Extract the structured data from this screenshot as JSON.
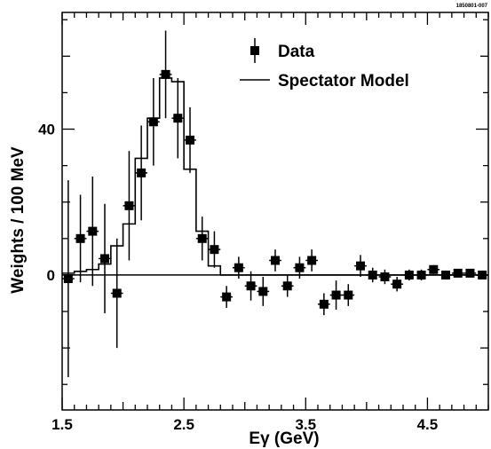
{
  "corner_label": "1850801-007",
  "chart_data": {
    "type": "scatter",
    "xlabel": "Eγ (GeV)",
    "ylabel": "Weights / 100 MeV",
    "xlim": [
      1.5,
      5.0
    ],
    "ylim": [
      -37,
      72
    ],
    "x_ticks": [
      1.5,
      2.5,
      3.5,
      4.5
    ],
    "x_tick_labels": [
      "1.5",
      "2.5",
      "3.5",
      "4.5"
    ],
    "y_ticks": [
      0,
      40
    ],
    "y_tick_labels": [
      "0",
      "40"
    ],
    "legend": {
      "position": "top-right",
      "entries": [
        "Data",
        "Spectator Model"
      ]
    },
    "series": [
      {
        "name": "Data",
        "marker": "square",
        "bin_width": 0.1,
        "x": [
          1.55,
          1.65,
          1.75,
          1.85,
          1.95,
          2.05,
          2.15,
          2.25,
          2.35,
          2.45,
          2.55,
          2.65,
          2.75,
          2.85,
          2.95,
          3.05,
          3.15,
          3.25,
          3.35,
          3.45,
          3.55,
          3.65,
          3.75,
          3.85,
          3.95,
          4.05,
          4.15,
          4.25,
          4.35,
          4.45,
          4.55,
          4.65,
          4.75,
          4.85,
          4.95
        ],
        "y": [
          -1,
          10,
          12,
          4.5,
          -5,
          19,
          28,
          42,
          55,
          43,
          37,
          10,
          7,
          -6,
          2,
          -3,
          -4.5,
          4,
          -3,
          2,
          4,
          -8,
          -5.5,
          -5.5,
          2.5,
          0,
          -0.5,
          -2.5,
          0,
          0,
          1.5,
          0,
          0.5,
          0.5,
          0
        ],
        "yerr": [
          27,
          12,
          15,
          15,
          15,
          15,
          13,
          12,
          12,
          11,
          9,
          6,
          5,
          3,
          3,
          4,
          4,
          3,
          3,
          3,
          3,
          3,
          4,
          3,
          3,
          2,
          2,
          2,
          1.5,
          1.5,
          1.2,
          1,
          1,
          1,
          1
        ]
      },
      {
        "name": "Spectator Model",
        "style": "step",
        "x": [
          1.55,
          1.65,
          1.75,
          1.85,
          1.95,
          2.05,
          2.15,
          2.25,
          2.35,
          2.45,
          2.55,
          2.65,
          2.75,
          2.85,
          2.95,
          3.05,
          3.15,
          3.25,
          3.35,
          3.45,
          3.55,
          3.65,
          3.75,
          3.85,
          3.95,
          4.05,
          4.15,
          4.25,
          4.35,
          4.45,
          4.55,
          4.65,
          4.75,
          4.85,
          4.95
        ],
        "y": [
          0.5,
          1,
          1.5,
          3,
          8,
          14,
          32,
          43,
          54,
          53,
          29,
          12,
          2.5,
          0,
          0,
          0,
          0,
          0,
          0,
          0,
          0,
          0,
          0,
          0,
          0,
          0,
          0,
          0,
          0,
          0,
          0,
          0,
          0,
          0,
          0
        ]
      }
    ]
  }
}
